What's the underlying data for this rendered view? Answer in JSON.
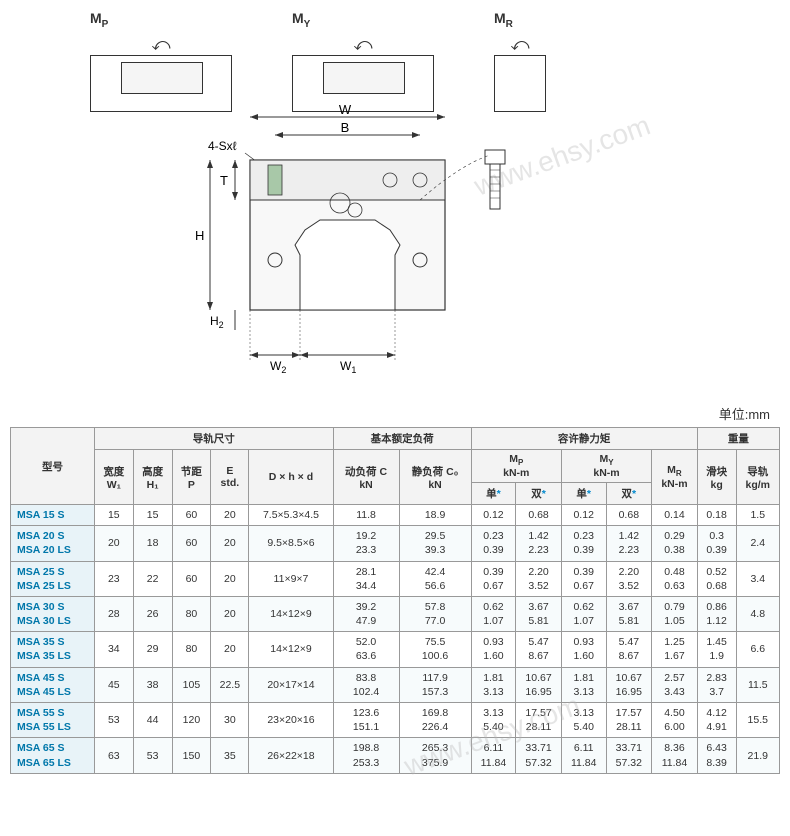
{
  "unit_label": "单位:mm",
  "watermark_text": "www.ehsy.com",
  "diagram_labels": {
    "mp": "M",
    "mp_sub": "P",
    "my": "M",
    "my_sub": "Y",
    "mr": "M",
    "mr_sub": "R",
    "w": "W",
    "b": "B",
    "t": "T",
    "h": "H",
    "h2": "H",
    "h2_sub": "2",
    "w1": "W",
    "w1_sub": "1",
    "w2": "W",
    "w2_sub": "2",
    "hole_label": "4-Sxℓ"
  },
  "headers": {
    "model": "型号",
    "rail_dim": "导轨尺寸",
    "basic_load": "基本额定负荷",
    "static_moment": "容许静力矩",
    "weight": "重量",
    "width_w1": "宽度",
    "width_w1_sub": "W₁",
    "height_h1": "高度",
    "height_h1_sub": "H₁",
    "pitch_p": "节距",
    "pitch_p_sub": "P",
    "e_std": "E",
    "e_std_sub": "std.",
    "dhd": "D × h × d",
    "dyn_c": "动负荷 C",
    "dyn_c_unit": "kN",
    "stat_co": "静负荷 C₀",
    "stat_co_unit": "kN",
    "mp": "M",
    "mp_sub": "P",
    "my": "M",
    "my_sub": "Y",
    "mr": "M",
    "mr_sub": "R",
    "knm": "kN-m",
    "single": "单",
    "double": "双",
    "block": "滑块",
    "block_unit": "kg",
    "rail": "导轨",
    "rail_unit": "kg/m"
  },
  "colors": {
    "header_bg": "#f3f3f3",
    "model_bg": "#e8f3f8",
    "model_text": "#0077aa",
    "row_even_bg": "#f7fbfc",
    "row_odd_bg": "#ffffff",
    "border": "#999999",
    "watermark": "rgba(180,180,180,0.35)"
  },
  "rows": [
    {
      "model": "MSA 15 S",
      "w1": "15",
      "h1": "15",
      "p": "60",
      "e": "20",
      "dhd": "7.5×5.3×4.5",
      "c": "11.8",
      "co": "18.9",
      "mp_s": "0.12",
      "mp_d": "0.68",
      "my_s": "0.12",
      "my_d": "0.68",
      "mr": "0.14",
      "blk": "0.18",
      "rail": "1.5"
    },
    {
      "model": "MSA 20 S\nMSA 20 LS",
      "w1": "20",
      "h1": "18",
      "p": "60",
      "e": "20",
      "dhd": "9.5×8.5×6",
      "c": "19.2\n23.3",
      "co": "29.5\n39.3",
      "mp_s": "0.23\n0.39",
      "mp_d": "1.42\n2.23",
      "my_s": "0.23\n0.39",
      "my_d": "1.42\n2.23",
      "mr": "0.29\n0.38",
      "blk": "0.3\n0.39",
      "rail": "2.4"
    },
    {
      "model": "MSA 25 S\nMSA 25 LS",
      "w1": "23",
      "h1": "22",
      "p": "60",
      "e": "20",
      "dhd": "11×9×7",
      "c": "28.1\n34.4",
      "co": "42.4\n56.6",
      "mp_s": "0.39\n0.67",
      "mp_d": "2.20\n3.52",
      "my_s": "0.39\n0.67",
      "my_d": "2.20\n3.52",
      "mr": "0.48\n0.63",
      "blk": "0.52\n0.68",
      "rail": "3.4"
    },
    {
      "model": "MSA 30 S\nMSA 30 LS",
      "w1": "28",
      "h1": "26",
      "p": "80",
      "e": "20",
      "dhd": "14×12×9",
      "c": "39.2\n47.9",
      "co": "57.8\n77.0",
      "mp_s": "0.62\n1.07",
      "mp_d": "3.67\n5.81",
      "my_s": "0.62\n1.07",
      "my_d": "3.67\n5.81",
      "mr": "0.79\n1.05",
      "blk": "0.86\n1.12",
      "rail": "4.8"
    },
    {
      "model": "MSA 35 S\nMSA 35 LS",
      "w1": "34",
      "h1": "29",
      "p": "80",
      "e": "20",
      "dhd": "14×12×9",
      "c": "52.0\n63.6",
      "co": "75.5\n100.6",
      "mp_s": "0.93\n1.60",
      "mp_d": "5.47\n8.67",
      "my_s": "0.93\n1.60",
      "my_d": "5.47\n8.67",
      "mr": "1.25\n1.67",
      "blk": "1.45\n1.9",
      "rail": "6.6"
    },
    {
      "model": "MSA 45 S\nMSA 45 LS",
      "w1": "45",
      "h1": "38",
      "p": "105",
      "e": "22.5",
      "dhd": "20×17×14",
      "c": "83.8\n102.4",
      "co": "117.9\n157.3",
      "mp_s": "1.81\n3.13",
      "mp_d": "10.67\n16.95",
      "my_s": "1.81\n3.13",
      "my_d": "10.67\n16.95",
      "mr": "2.57\n3.43",
      "blk": "2.83\n3.7",
      "rail": "11.5"
    },
    {
      "model": "MSA 55 S\nMSA 55 LS",
      "w1": "53",
      "h1": "44",
      "p": "120",
      "e": "30",
      "dhd": "23×20×16",
      "c": "123.6\n151.1",
      "co": "169.8\n226.4",
      "mp_s": "3.13\n5.40",
      "mp_d": "17.57\n28.11",
      "my_s": "3.13\n5.40",
      "my_d": "17.57\n28.11",
      "mr": "4.50\n6.00",
      "blk": "4.12\n4.91",
      "rail": "15.5"
    },
    {
      "model": "MSA 65 S\nMSA 65 LS",
      "w1": "63",
      "h1": "53",
      "p": "150",
      "e": "35",
      "dhd": "26×22×18",
      "c": "198.8\n253.3",
      "co": "265.3\n375.9",
      "mp_s": "6.11\n11.84",
      "mp_d": "33.71\n57.32",
      "my_s": "6.11\n11.84",
      "my_d": "33.71\n57.32",
      "mr": "8.36\n11.84",
      "blk": "6.43\n8.39",
      "rail": "21.9"
    }
  ]
}
